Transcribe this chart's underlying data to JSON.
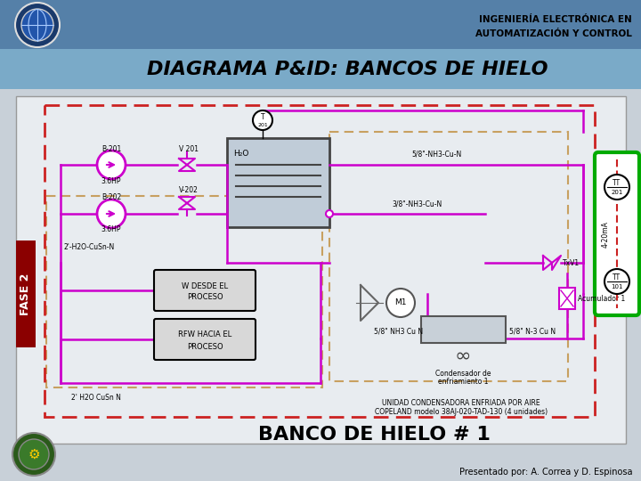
{
  "title_line1": "INGENIERÍA ELECTRÓNICA EN",
  "title_line2": "AUTOMATIZACIÓN Y CONTROL",
  "main_title": "DIAGRAMA P&ID: BANCOS DE HIELO",
  "subtitle": "BANCO DE HIELO # 1",
  "presenter": "Presentado por: A. Correa y D. Espinosa",
  "header_top_color": "#5580a8",
  "header_bot_color": "#7aaac8",
  "body_bg": "#c8d0d8",
  "pipe_color": "#cc00cc",
  "dashed_outer": "#cc2222",
  "inner_box_color": "#c8a060",
  "green_box_color": "#00aa00",
  "white": "#ffffff",
  "tank_bg": "#b8c8d8",
  "diag_bg": "#e8ecf0"
}
